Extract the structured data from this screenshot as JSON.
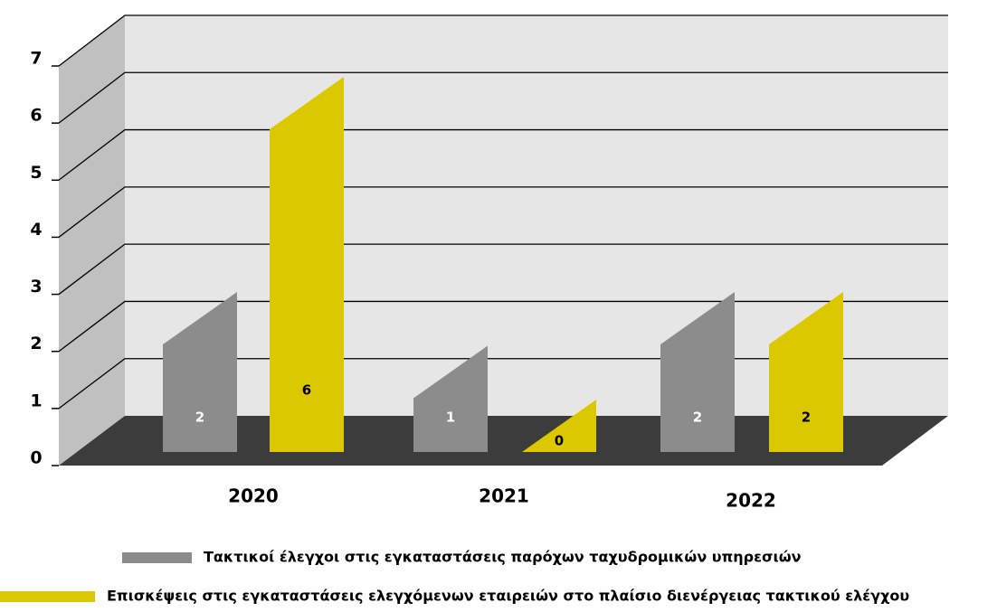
{
  "chart_data": {
    "type": "bar3d",
    "categories": [
      "2020",
      "2021",
      "2022"
    ],
    "series": [
      {
        "name": "Τακτικοί έλεγχοι στις εγκαταστάσεις παρόχων ταχυδρομικών υπηρεσιών",
        "color": "#8c8c8c",
        "values": [
          2,
          1,
          2
        ]
      },
      {
        "name": "Επισκέψεις στις εγκαταστάσεις ελεγχόμενων εταιρειών στο πλαίσιο διενέργειας τακτικού ελέγχου",
        "color": "#dcc800",
        "values": [
          6,
          0,
          2
        ]
      }
    ],
    "ylim": [
      0,
      7
    ],
    "yticks": [
      0,
      1,
      2,
      3,
      4,
      5,
      6,
      7
    ],
    "grid": true
  }
}
